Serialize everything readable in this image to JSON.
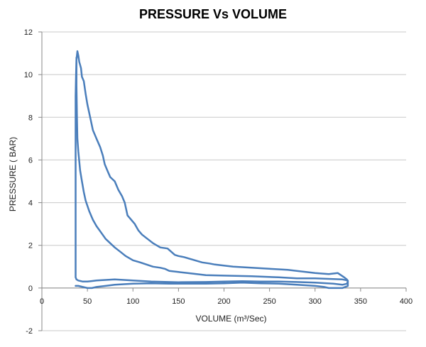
{
  "chart_data": {
    "type": "line",
    "title": "PRESSURE Vs VOLUME",
    "xlabel": "VOLUME  (m³/Sec)",
    "ylabel": "PRESSURE ( BAR)",
    "xlim": [
      0,
      400
    ],
    "ylim": [
      -2,
      12
    ],
    "x_ticks": [
      0,
      50,
      100,
      150,
      200,
      250,
      300,
      350,
      400
    ],
    "y_ticks": [
      -2,
      0,
      2,
      4,
      6,
      8,
      10,
      12
    ],
    "x_tick_labels": [
      "0",
      "50",
      "100",
      "150",
      "200",
      "250",
      "300",
      "350",
      "400"
    ],
    "y_tick_labels": [
      "-2",
      "0",
      "2",
      "4",
      "6",
      "8",
      "10",
      "12"
    ],
    "grid": "horizontal",
    "legend": "none",
    "line_color": "#4A7EBB",
    "series": [
      {
        "points": [
          [
            39,
            11.1
          ],
          [
            40,
            10.9
          ],
          [
            41,
            10.6
          ],
          [
            43,
            10.3
          ],
          [
            44,
            9.9
          ],
          [
            46,
            9.7
          ],
          [
            48,
            9.1
          ],
          [
            50,
            8.6
          ],
          [
            53,
            8.0
          ],
          [
            56,
            7.4
          ],
          [
            60,
            7.0
          ],
          [
            64,
            6.6
          ],
          [
            67,
            6.2
          ],
          [
            69,
            5.8
          ],
          [
            72,
            5.5
          ],
          [
            75,
            5.2
          ],
          [
            80,
            5.0
          ],
          [
            84,
            4.6
          ],
          [
            88,
            4.3
          ],
          [
            91,
            4.0
          ],
          [
            94,
            3.4
          ],
          [
            98,
            3.2
          ],
          [
            102,
            3.0
          ],
          [
            106,
            2.7
          ],
          [
            110,
            2.5
          ],
          [
            116,
            2.3
          ],
          [
            122,
            2.1
          ],
          [
            130,
            1.9
          ],
          [
            138,
            1.85
          ],
          [
            142,
            1.7
          ],
          [
            146,
            1.55
          ],
          [
            150,
            1.5
          ],
          [
            156,
            1.45
          ],
          [
            160,
            1.4
          ],
          [
            168,
            1.3
          ],
          [
            176,
            1.2
          ],
          [
            184,
            1.15
          ],
          [
            190,
            1.1
          ],
          [
            200,
            1.05
          ],
          [
            210,
            1.0
          ],
          [
            230,
            0.95
          ],
          [
            250,
            0.9
          ],
          [
            270,
            0.85
          ],
          [
            290,
            0.75
          ],
          [
            300,
            0.7
          ],
          [
            315,
            0.65
          ],
          [
            325,
            0.7
          ],
          [
            332,
            0.5
          ],
          [
            335,
            0.4
          ],
          [
            336,
            0.3
          ],
          [
            335,
            0.2
          ],
          [
            330,
            0.15
          ],
          [
            320,
            0.2
          ],
          [
            300,
            0.25
          ],
          [
            280,
            0.28
          ],
          [
            260,
            0.3
          ],
          [
            240,
            0.3
          ],
          [
            220,
            0.32
          ],
          [
            200,
            0.3
          ],
          [
            180,
            0.28
          ],
          [
            150,
            0.27
          ],
          [
            120,
            0.3
          ],
          [
            100,
            0.35
          ],
          [
            80,
            0.4
          ],
          [
            60,
            0.35
          ],
          [
            50,
            0.3
          ],
          [
            45,
            0.3
          ],
          [
            40,
            0.35
          ],
          [
            38,
            0.4
          ],
          [
            37,
            0.5
          ],
          [
            37,
            1.0
          ],
          [
            37,
            2.0
          ],
          [
            37,
            3.0
          ],
          [
            37,
            4.0
          ],
          [
            37,
            5.0
          ],
          [
            37,
            6.0
          ],
          [
            37,
            7.0
          ],
          [
            37,
            8.0
          ],
          [
            37,
            9.0
          ],
          [
            37.5,
            10.0
          ],
          [
            38,
            10.7
          ],
          [
            39,
            11.1
          ]
        ]
      },
      {
        "points": [
          [
            38,
            10.8
          ],
          [
            38,
            9.5
          ],
          [
            38.5,
            8.0
          ],
          [
            39,
            7.0
          ],
          [
            40,
            6.4
          ],
          [
            42,
            5.5
          ],
          [
            44,
            5.0
          ],
          [
            46,
            4.5
          ],
          [
            48,
            4.1
          ],
          [
            52,
            3.6
          ],
          [
            56,
            3.2
          ],
          [
            60,
            2.9
          ],
          [
            65,
            2.6
          ],
          [
            70,
            2.3
          ],
          [
            75,
            2.1
          ],
          [
            80,
            1.9
          ],
          [
            86,
            1.7
          ],
          [
            92,
            1.5
          ],
          [
            100,
            1.3
          ],
          [
            108,
            1.2
          ],
          [
            115,
            1.1
          ],
          [
            122,
            1.0
          ],
          [
            130,
            0.95
          ],
          [
            135,
            0.9
          ],
          [
            140,
            0.8
          ],
          [
            150,
            0.75
          ],
          [
            160,
            0.7
          ],
          [
            180,
            0.6
          ],
          [
            200,
            0.58
          ],
          [
            230,
            0.55
          ],
          [
            260,
            0.5
          ],
          [
            280,
            0.45
          ],
          [
            300,
            0.45
          ],
          [
            320,
            0.42
          ],
          [
            330,
            0.4
          ],
          [
            336,
            0.35
          ],
          [
            336,
            0.1
          ],
          [
            330,
            0.0
          ],
          [
            315,
            0.0
          ],
          [
            310,
            0.05
          ],
          [
            300,
            0.1
          ],
          [
            280,
            0.15
          ],
          [
            260,
            0.2
          ],
          [
            240,
            0.22
          ],
          [
            220,
            0.25
          ],
          [
            200,
            0.22
          ],
          [
            180,
            0.2
          ],
          [
            160,
            0.2
          ],
          [
            140,
            0.2
          ],
          [
            120,
            0.22
          ],
          [
            100,
            0.2
          ],
          [
            80,
            0.15
          ],
          [
            70,
            0.1
          ],
          [
            60,
            0.05
          ],
          [
            55,
            0.0
          ],
          [
            50,
            0.0
          ],
          [
            45,
            0.05
          ],
          [
            40,
            0.1
          ],
          [
            37,
            0.1
          ]
        ]
      }
    ]
  }
}
